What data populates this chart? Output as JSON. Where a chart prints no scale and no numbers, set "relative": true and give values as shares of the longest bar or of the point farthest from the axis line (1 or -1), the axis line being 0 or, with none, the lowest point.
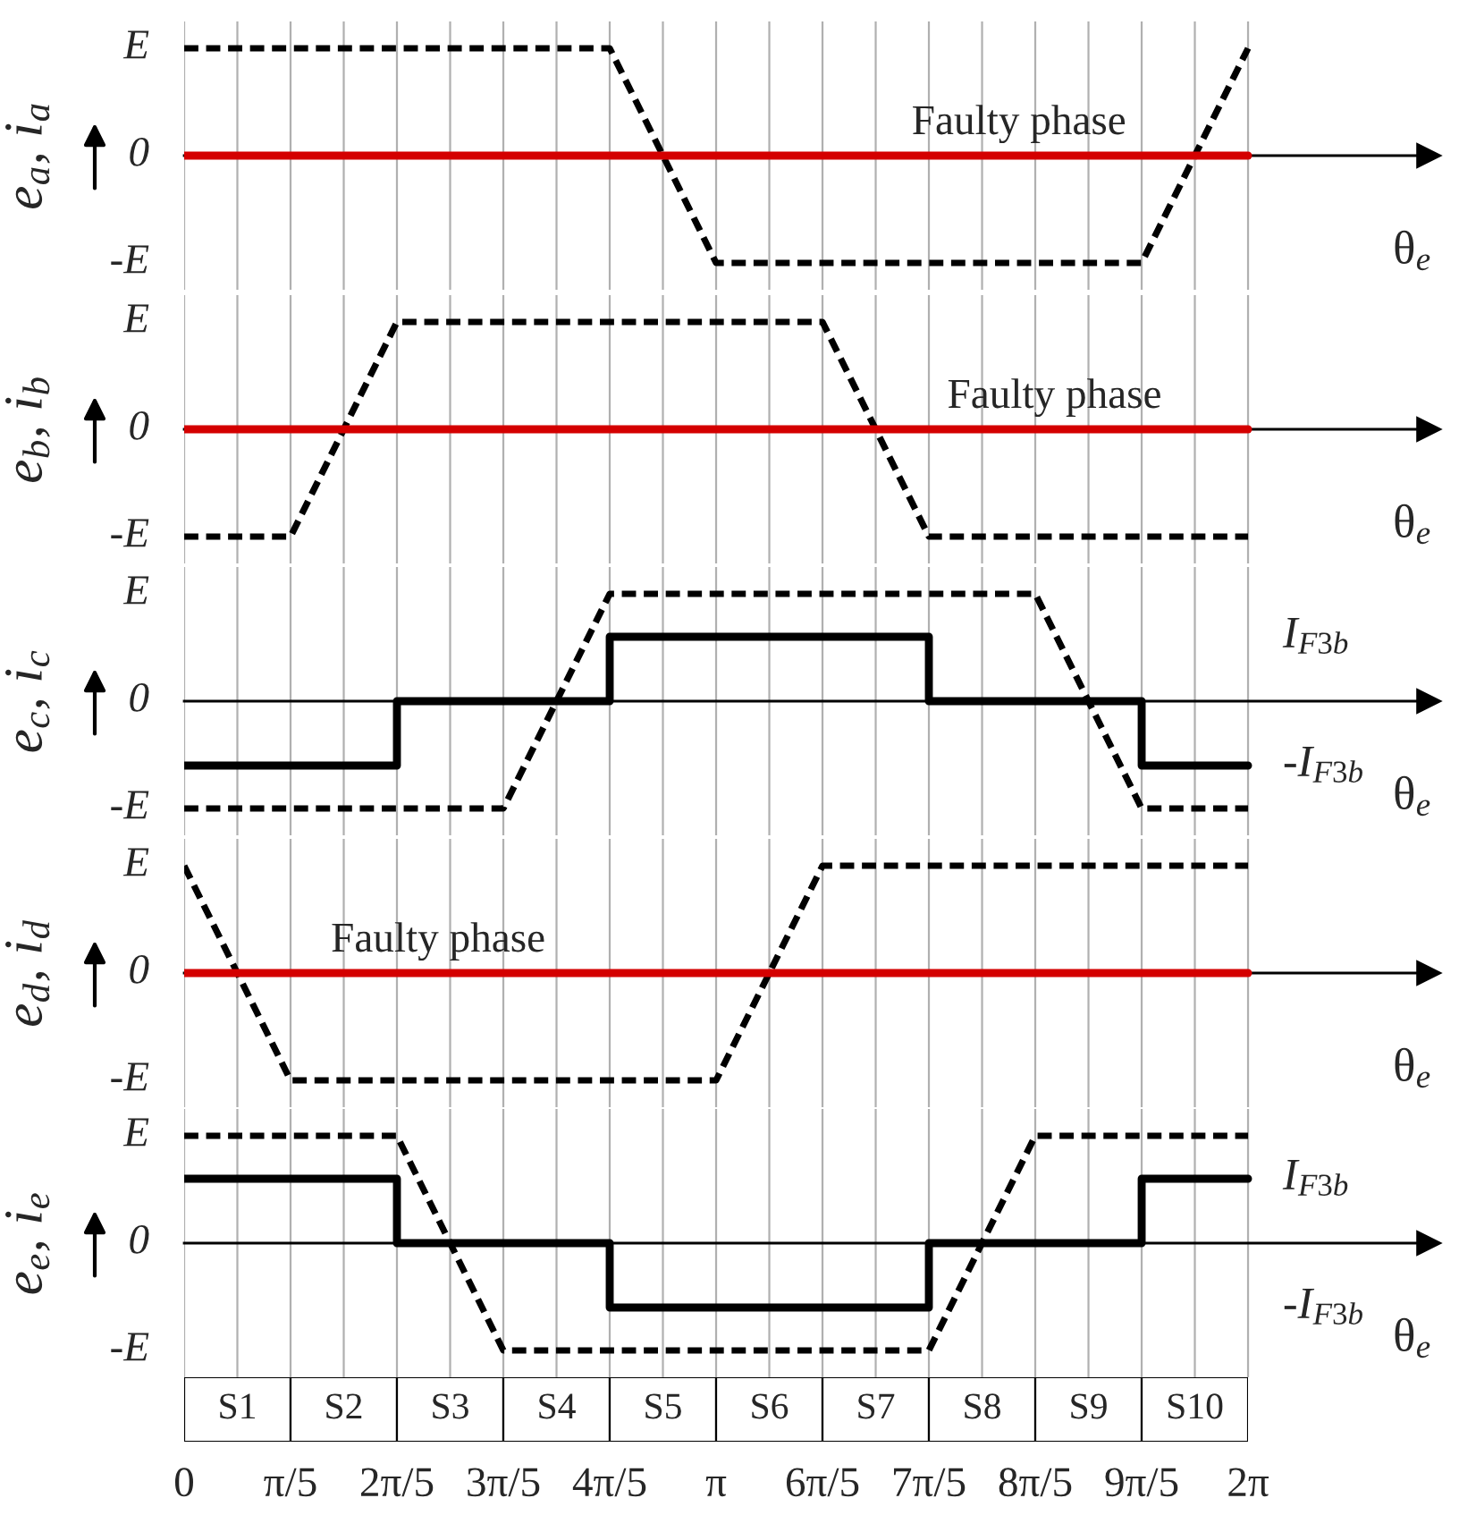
{
  "chart_data": [
    {
      "type": "line",
      "relative": true,
      "ylabel": "e$_{a}$, i$_{a}$",
      "xlabel": "θ$_{e}$",
      "xlim": [
        0,
        7.35
      ],
      "tick_labels": false,
      "grid": "x",
      "xticks": [
        0,
        0.3142,
        0.6283,
        0.9425,
        1.2566,
        1.5708,
        1.885,
        2.1991,
        2.5133,
        2.8274,
        3.1416,
        3.4558,
        3.7699,
        4.0841,
        4.3982,
        4.7124,
        5.0265,
        5.3407,
        5.6549,
        5.969,
        6.2832
      ],
      "series": [
        {
          "color": "#000000",
          "line_style": "dashed",
          "x": [
            0,
            2.5133,
            3.1416,
            5.6549,
            6.2832
          ],
          "values": [
            1,
            1,
            -1,
            -1,
            1
          ]
        },
        {
          "color": "#d40000",
          "line_style": "solid",
          "x": [
            0,
            6.2832
          ],
          "values": [
            0,
            0
          ]
        }
      ],
      "annotations": [
        "E",
        "0",
        "-E",
        {
          "text": "Faulty phase",
          "x": 4.93,
          "y": 0
        }
      ]
    },
    {
      "type": "line",
      "relative": true,
      "ylabel": "e$_{b}$, i$_{b}$",
      "xlabel": "θ$_{e}$",
      "xlim": [
        0,
        7.35
      ],
      "tick_labels": false,
      "grid": "x",
      "xticks": [
        0,
        0.3142,
        0.6283,
        0.9425,
        1.2566,
        1.5708,
        1.885,
        2.1991,
        2.5133,
        2.8274,
        3.1416,
        3.4558,
        3.7699,
        4.0841,
        4.3982,
        4.7124,
        5.0265,
        5.3407,
        5.6549,
        5.969,
        6.2832
      ],
      "series": [
        {
          "color": "#000000",
          "line_style": "dashed",
          "x": [
            0,
            0.6283,
            1.2566,
            3.7699,
            4.3982,
            6.2832
          ],
          "values": [
            -1,
            -1,
            1,
            1,
            -1,
            -1
          ]
        },
        {
          "color": "#d40000",
          "line_style": "solid",
          "x": [
            0,
            6.2832
          ],
          "values": [
            0,
            0
          ]
        }
      ],
      "annotations": [
        "E",
        "0",
        "-E",
        {
          "text": "Faulty phase",
          "x": 5.14,
          "y": 0
        }
      ]
    },
    {
      "type": "line",
      "relative": true,
      "ylabel": "e$_{c}$, i$_{c}$",
      "xlabel": "θ$_{e}$",
      "xlim": [
        0,
        7.35
      ],
      "tick_labels": false,
      "grid": "x",
      "xticks": [
        0,
        0.3142,
        0.6283,
        0.9425,
        1.2566,
        1.5708,
        1.885,
        2.1991,
        2.5133,
        2.8274,
        3.1416,
        3.4558,
        3.7699,
        4.0841,
        4.3982,
        4.7124,
        5.0265,
        5.3407,
        5.6549,
        5.969,
        6.2832
      ],
      "series": [
        {
          "color": "#000000",
          "line_style": "dashed",
          "x": [
            0,
            1.885,
            2.5133,
            5.0265,
            5.6549,
            6.2832
          ],
          "values": [
            -1,
            -1,
            1,
            1,
            -1,
            -1
          ]
        },
        {
          "color": "#000000",
          "line_style": "solid",
          "x": [
            0,
            1.2566,
            1.2566,
            2.5133,
            2.5133,
            4.3982,
            4.3982,
            5.6549,
            5.6549,
            6.2832
          ],
          "values": [
            -0.6,
            -0.6,
            0,
            0,
            0.6,
            0.6,
            0,
            0,
            -0.6,
            -0.6
          ]
        }
      ],
      "annotations": [
        "E",
        "0",
        "-E",
        "I$_{F3b}$",
        "-I$_{F3b}$"
      ]
    },
    {
      "type": "line",
      "relative": true,
      "ylabel": "e$_{d}$, i$_{d}$",
      "xlabel": "θ$_{e}$",
      "xlim": [
        0,
        7.35
      ],
      "tick_labels": false,
      "grid": "x",
      "xticks": [
        0,
        0.3142,
        0.6283,
        0.9425,
        1.2566,
        1.5708,
        1.885,
        2.1991,
        2.5133,
        2.8274,
        3.1416,
        3.4558,
        3.7699,
        4.0841,
        4.3982,
        4.7124,
        5.0265,
        5.3407,
        5.6549,
        5.969,
        6.2832
      ],
      "series": [
        {
          "color": "#000000",
          "line_style": "dashed",
          "x": [
            0,
            0.6283,
            3.1416,
            3.7699,
            6.2832
          ],
          "values": [
            1,
            -1,
            -1,
            1,
            1
          ]
        },
        {
          "color": "#d40000",
          "line_style": "solid",
          "x": [
            0,
            6.2832
          ],
          "values": [
            0,
            0
          ]
        }
      ],
      "annotations": [
        "E",
        "0",
        "-E",
        {
          "text": "Faulty phase",
          "x": 1.5,
          "y": 0
        }
      ]
    },
    {
      "type": "line",
      "relative": true,
      "ylabel": "e$_{e}$, i$_{e}$",
      "xlabel": "θ$_{e}$",
      "xlim": [
        0,
        7.35
      ],
      "tick_labels": "x",
      "grid": "x",
      "xticks": [
        0,
        {
          "value": 0.3142,
          "label": null
        },
        {
          "value": 0.6283,
          "label": "π/5"
        },
        {
          "value": 0.9425,
          "label": null
        },
        {
          "value": 1.2566,
          "label": "2π/5"
        },
        {
          "value": 1.5708,
          "label": null
        },
        {
          "value": 1.885,
          "label": "3π/5"
        },
        {
          "value": 2.1991,
          "label": null
        },
        {
          "value": 2.5133,
          "label": "4π/5"
        },
        {
          "value": 2.8274,
          "label": null
        },
        {
          "value": 3.1416,
          "label": "π"
        },
        {
          "value": 3.4558,
          "label": null
        },
        {
          "value": 3.7699,
          "label": "6π/5"
        },
        {
          "value": 4.0841,
          "label": null
        },
        {
          "value": 4.3982,
          "label": "7π/5"
        },
        {
          "value": 4.7124,
          "label": null
        },
        {
          "value": 5.0265,
          "label": "8π/5"
        },
        {
          "value": 5.3407,
          "label": null
        },
        {
          "value": 5.6549,
          "label": "9π/5"
        },
        {
          "value": 5.969,
          "label": null
        },
        {
          "value": 6.2832,
          "label": "2π"
        }
      ],
      "series": [
        {
          "color": "#000000",
          "line_style": "dashed",
          "x": [
            0,
            1.2566,
            1.885,
            4.3982,
            5.0265,
            6.2832
          ],
          "values": [
            1,
            1,
            -1,
            -1,
            1,
            1
          ]
        },
        {
          "color": "#000000",
          "line_style": "solid",
          "x": [
            0,
            1.2566,
            1.2566,
            2.5133,
            2.5133,
            4.3982,
            4.3982,
            5.6549,
            5.6549,
            6.2832
          ],
          "values": [
            0.6,
            0.6,
            0,
            0,
            -0.6,
            -0.6,
            0,
            0,
            0.6,
            0.6
          ]
        }
      ],
      "annotations": [
        "E",
        "0",
        "-E",
        "I$_{F3b}$",
        "-I$_{F3b}$"
      ]
    },
    {
      "type": "other",
      "categories": [
        "S1",
        "S2",
        "S3",
        "S4",
        "S5",
        "S6",
        "S7",
        "S8",
        "S9",
        "S10"
      ]
    }
  ]
}
